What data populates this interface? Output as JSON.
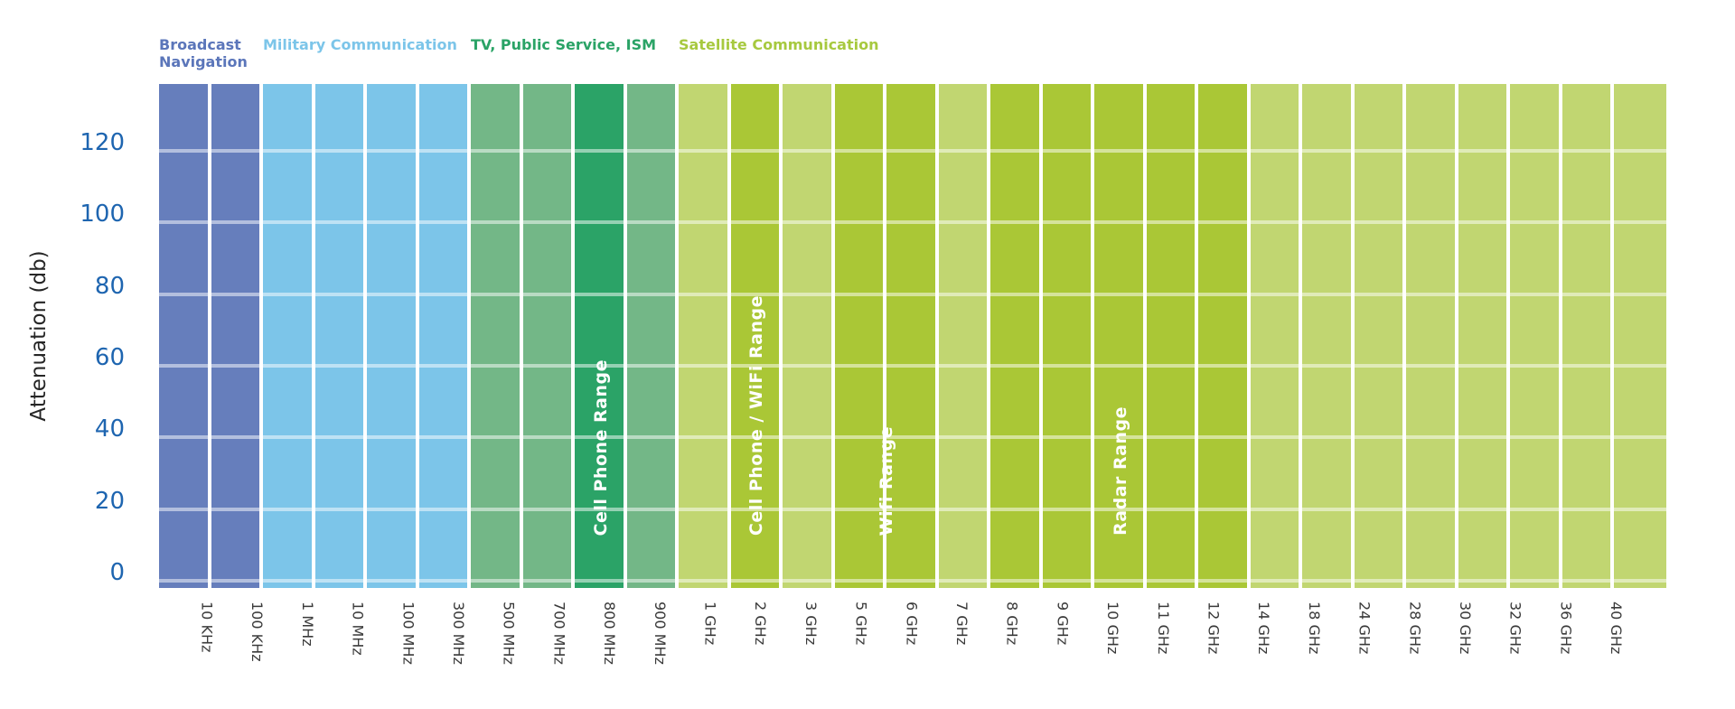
{
  "axis": {
    "y_title": "Attenuation (db)"
  },
  "chart_data": {
    "type": "heatmap",
    "title": "",
    "xlabel": "",
    "ylabel": "Attenuation (db)",
    "x_categories": [
      "10 KHz",
      "100 KHz",
      "1 MHz",
      "10 MHz",
      "100 MHz",
      "300 MHz",
      "500 MHz",
      "700 MHz",
      "800 MHz",
      "900 MHz",
      "1 GHz",
      "2 GHz",
      "3 GHz",
      "5 GHz",
      "6 GHz",
      "7 GHz",
      "8 GHz",
      "9 GHz",
      "10 GHz",
      "11 GHz",
      "12 GHz",
      "14 GHz",
      "18 GHz",
      "24 GHz",
      "28 GHz",
      "30 GHz",
      "32 GHz",
      "36 GHz",
      "40 GHz"
    ],
    "y_ticks": [
      0,
      20,
      40,
      60,
      80,
      100,
      120
    ],
    "ylim": [
      0,
      138
    ],
    "grid": true,
    "legend_position": "top-left",
    "bands": [
      {
        "name": "Broadcast Navigation",
        "color": "#667ebc",
        "text_color": "#5b76ba",
        "frequencies": [
          "10 KHz",
          "100 KHz"
        ]
      },
      {
        "name": "Military Communication",
        "color": "#7cc5e9",
        "text_color": "#7cc5e9",
        "frequencies": [
          "1 MHz",
          "10 MHz",
          "100 MHz",
          "300 MHz"
        ]
      },
      {
        "name": "TV, Public Service, ISM",
        "color": "#73b787",
        "text_color": "#2aa366",
        "frequencies": [
          "500 MHz",
          "700 MHz",
          "800 MHz",
          "900 MHz"
        ]
      },
      {
        "name": "Satellite Communication",
        "color": "#c1d671",
        "text_color": "#a7c93f",
        "frequencies": [
          "1 GHz",
          "2 GHz",
          "3 GHz",
          "5 GHz",
          "6 GHz",
          "7 GHz",
          "8 GHz",
          "9 GHz",
          "10 GHz",
          "11 GHz",
          "12 GHz",
          "14 GHz",
          "18 GHz",
          "24 GHz",
          "28 GHz",
          "30 GHz",
          "32 GHz",
          "36 GHz",
          "40 GHz"
        ]
      }
    ],
    "highlights": [
      {
        "label": "Cell Phone Range",
        "color": "#2ba367",
        "from": "800 MHz",
        "to": "800 MHz"
      },
      {
        "label": "Cell Phone / WiFi Range",
        "color": "#aac736",
        "from": "2 GHz",
        "to": "2 GHz"
      },
      {
        "label": "Wifi Range",
        "color": "#aac736",
        "from": "5 GHz",
        "to": "6 GHz"
      },
      {
        "label": "Radar Range",
        "color": "#aac736",
        "from": "8 GHz",
        "to": "12 GHz"
      }
    ],
    "colors": {
      "y_tick": "#1e65b0",
      "x_tick": "#3a3a3a",
      "grid_line": "rgba(255,255,255,0.5)",
      "column_separator": "#ffffff",
      "background": "#ffffff"
    }
  }
}
